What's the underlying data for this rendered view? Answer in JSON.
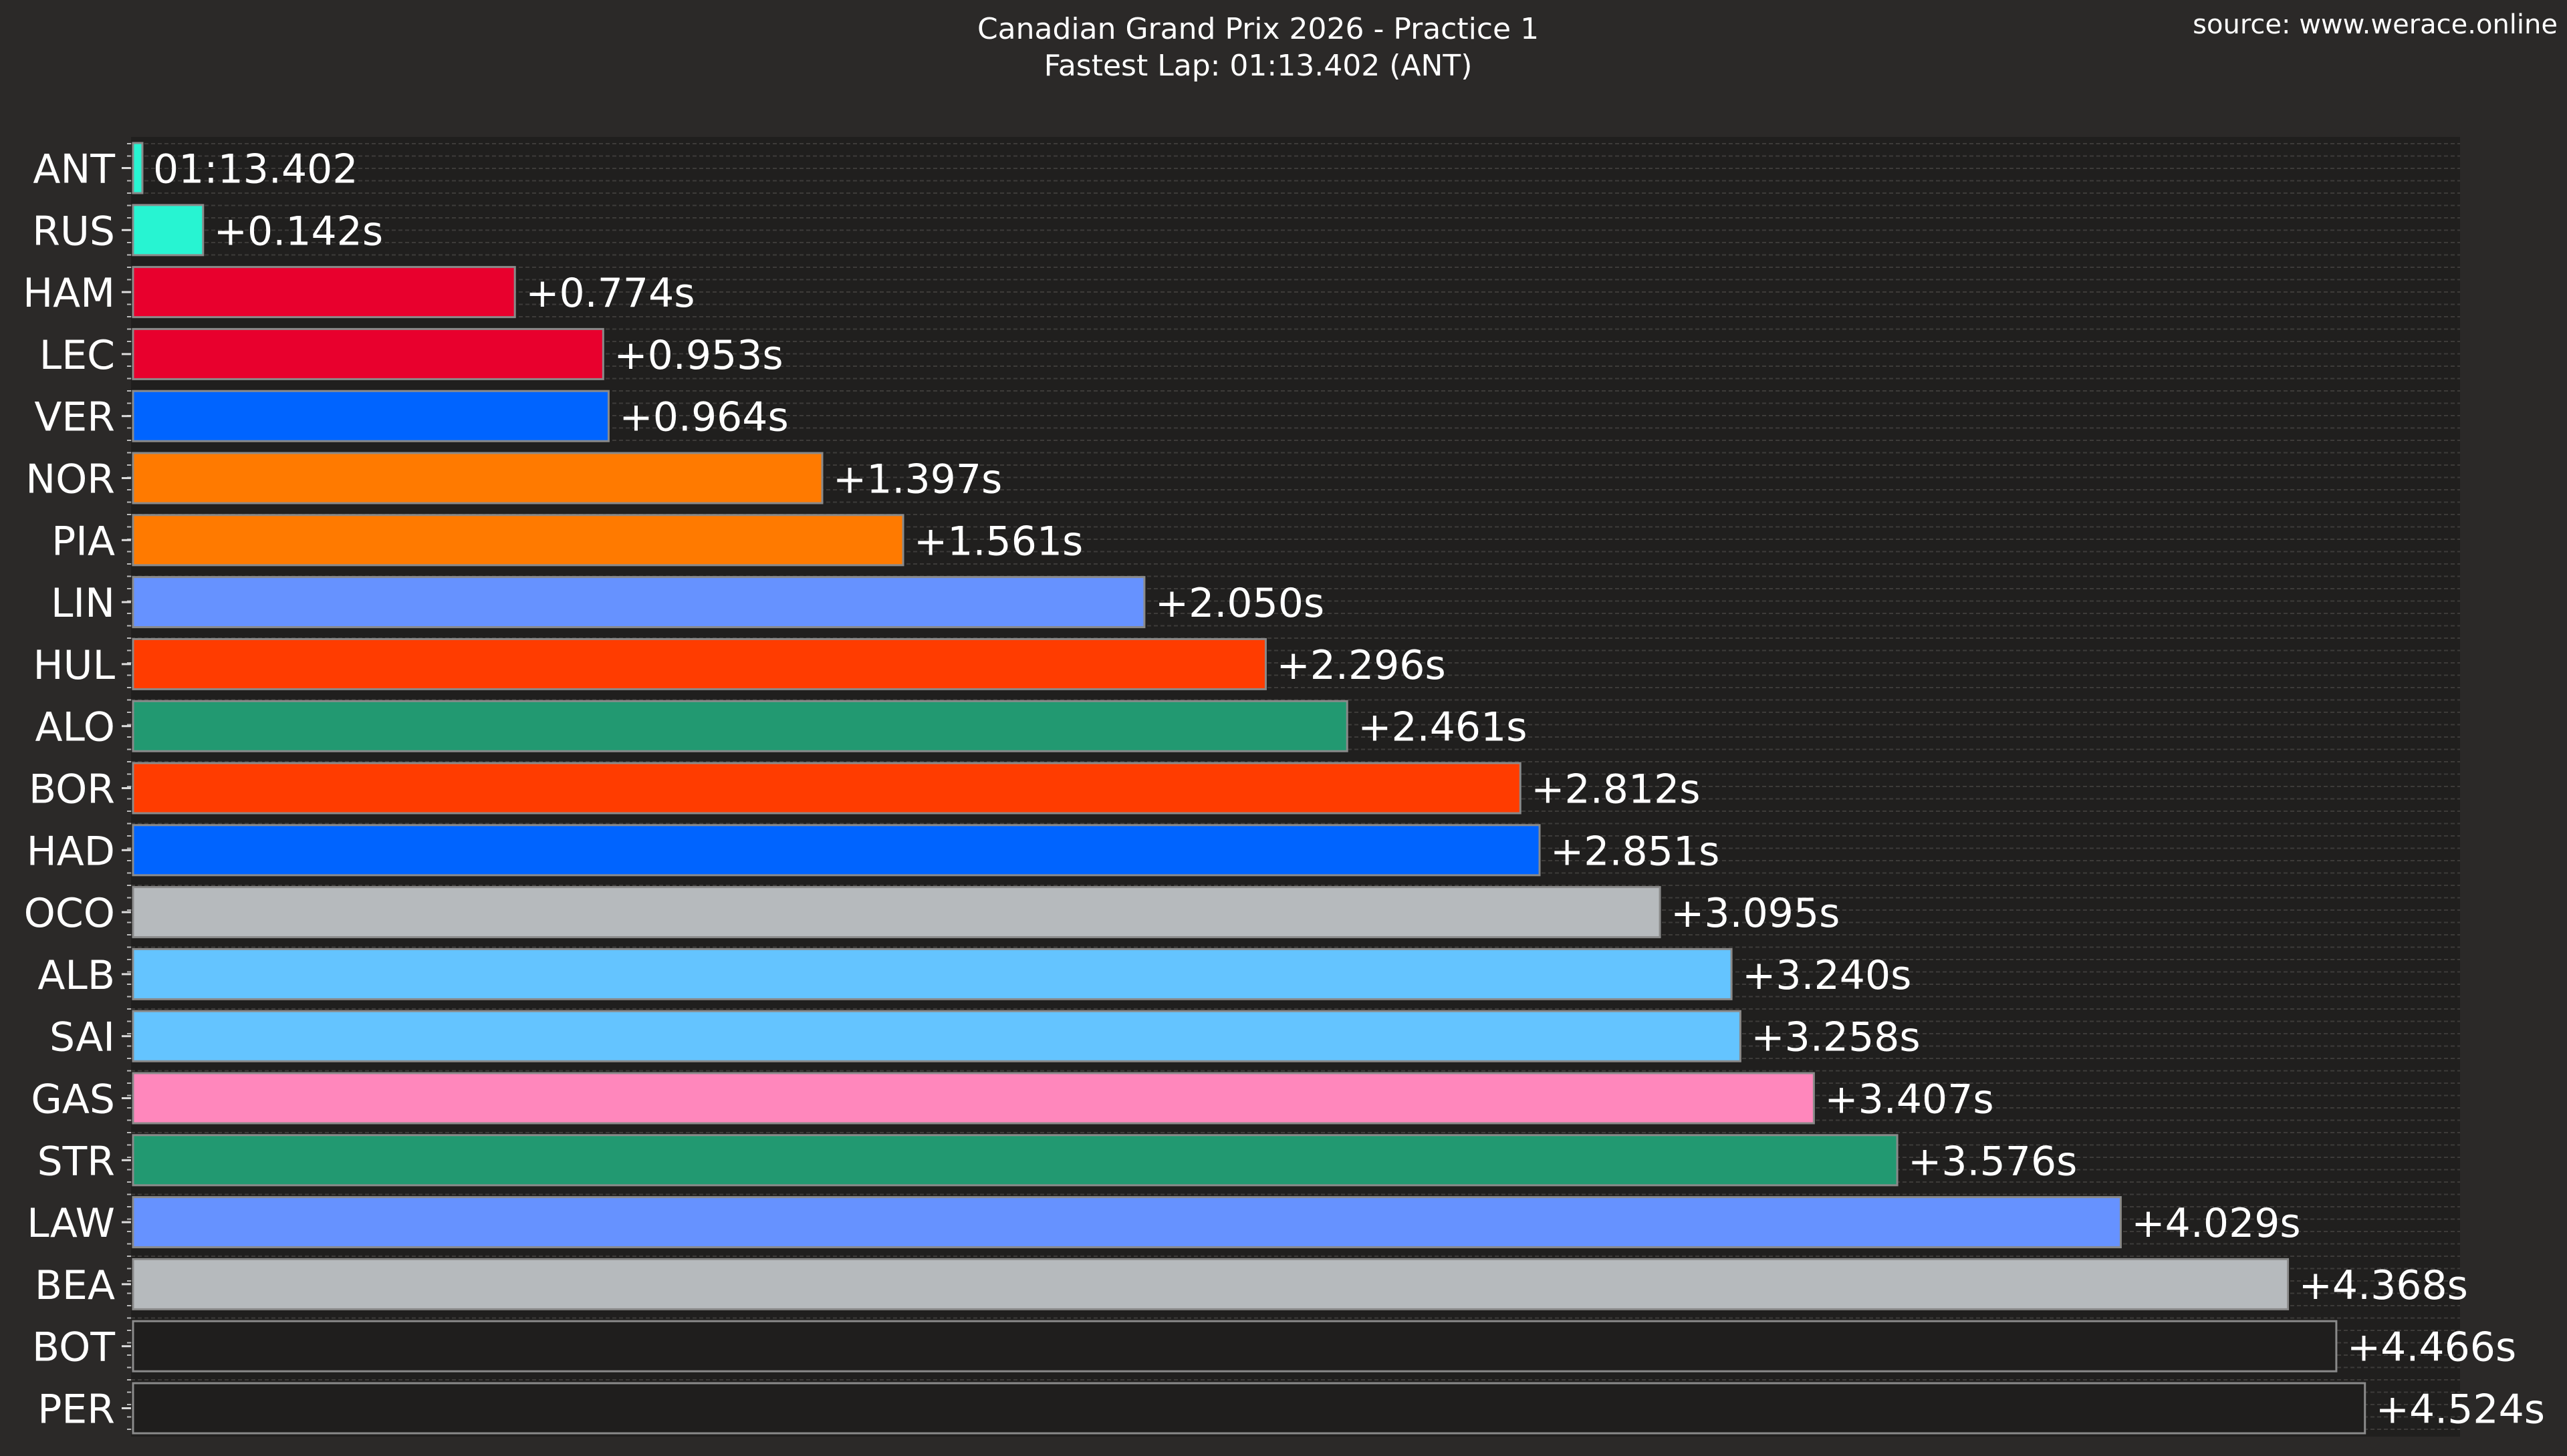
{
  "chart_data": {
    "type": "bar",
    "orientation": "horizontal",
    "title": "Canadian Grand Prix 2026 - Practice 1",
    "subtitle": "Fastest Lap: 01:13.402 (ANT)",
    "source": "source: www.werace.online",
    "xlim": [
      0,
      4.6
    ],
    "grid": true,
    "categories": [
      "ANT",
      "RUS",
      "HAM",
      "LEC",
      "VER",
      "NOR",
      "PIA",
      "LIN",
      "HUL",
      "ALO",
      "BOR",
      "HAD",
      "OCO",
      "ALB",
      "SAI",
      "GAS",
      "STR",
      "LAW",
      "BEA",
      "BOT",
      "PER"
    ],
    "values": [
      0,
      0.142,
      0.774,
      0.953,
      0.964,
      1.397,
      1.561,
      2.05,
      2.296,
      2.461,
      2.812,
      2.851,
      3.095,
      3.24,
      3.258,
      3.407,
      3.576,
      4.029,
      4.368,
      4.466,
      4.524
    ],
    "labels": [
      "01:13.402",
      "+0.142s",
      "+0.774s",
      "+0.953s",
      "+0.964s",
      "+1.397s",
      "+1.561s",
      "+2.050s",
      "+2.296s",
      "+2.461s",
      "+2.812s",
      "+2.851s",
      "+3.095s",
      "+3.240s",
      "+3.258s",
      "+3.407s",
      "+3.576s",
      "+4.029s",
      "+4.368s",
      "+4.466s",
      "+4.524s"
    ],
    "colors": [
      "#27F4D2",
      "#27F4D2",
      "#E8002D",
      "#E8002D",
      "#0064FF",
      "#FF7A00",
      "#FF7A00",
      "#6692FF",
      "#FF3C00",
      "#229971",
      "#FF3C00",
      "#0064FF",
      "#B6BABD",
      "#64C4FF",
      "#64C4FF",
      "#FF87BC",
      "#229971",
      "#6692FF",
      "#B6BABD",
      "#1f1e1d",
      "#1f1e1d"
    ]
  }
}
